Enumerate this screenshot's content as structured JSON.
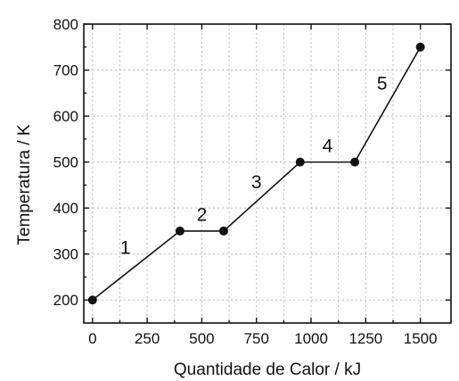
{
  "chart_data": {
    "type": "line",
    "title": "",
    "xlabel": "Quantidade de Calor / kJ",
    "ylabel": "Temperatura / K",
    "xlim": [
      -40,
      1640
    ],
    "ylim": [
      150,
      800
    ],
    "xticks": [
      0,
      250,
      500,
      750,
      1000,
      1250,
      1500
    ],
    "yticks": [
      200,
      300,
      400,
      500,
      600,
      700,
      800
    ],
    "grid": true,
    "legend": "none",
    "series": [
      {
        "points": [
          {
            "x": 0,
            "y": 200
          },
          {
            "x": 400,
            "y": 350
          },
          {
            "x": 600,
            "y": 350
          },
          {
            "x": 950,
            "y": 500
          },
          {
            "x": 1200,
            "y": 500
          },
          {
            "x": 1500,
            "y": 750
          }
        ]
      }
    ],
    "annotations": [
      {
        "text": "1",
        "x": 150,
        "y": 300
      },
      {
        "text": "2",
        "x": 500,
        "y": 372
      },
      {
        "text": "3",
        "x": 750,
        "y": 443
      },
      {
        "text": "4",
        "x": 1075,
        "y": 522
      },
      {
        "text": "5",
        "x": 1325,
        "y": 657
      }
    ]
  }
}
